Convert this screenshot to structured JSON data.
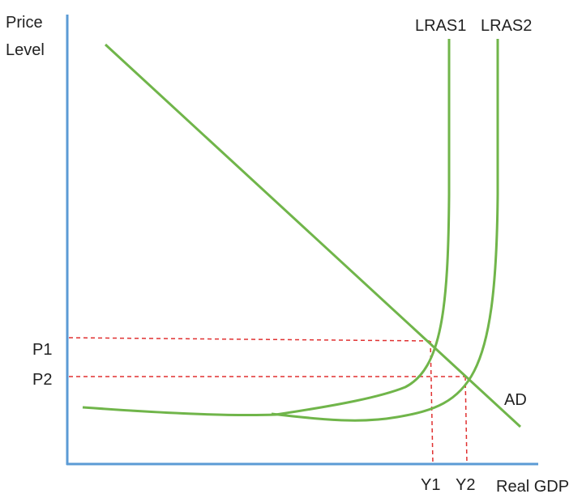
{
  "labels": {
    "y_axis_line1": "Price",
    "y_axis_line2": "Level",
    "x_axis": "Real GDP",
    "lras1": "LRAS1",
    "lras2": "LRAS2",
    "ad": "AD",
    "p1": "P1",
    "p2": "P2",
    "y1": "Y1",
    "y2": "Y2"
  },
  "colors": {
    "axis": "#5b9bd5",
    "curve": "#70b54a",
    "guide": "#e03131",
    "text": "#222222"
  }
}
